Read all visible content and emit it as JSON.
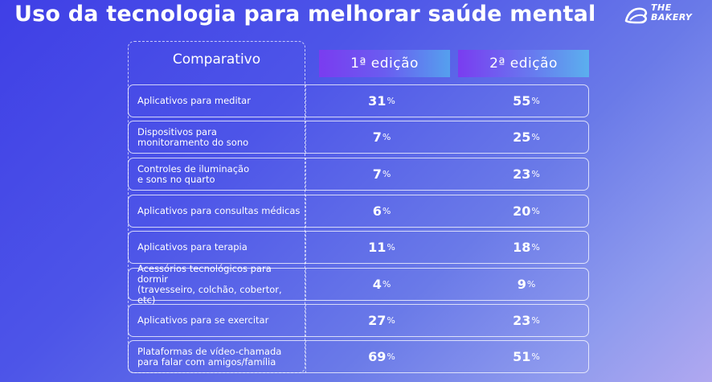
{
  "title": "Uso da tecnologia para melhorar saúde mental",
  "logo": {
    "line1": "THE",
    "line2": "BAKERY"
  },
  "table": {
    "header": {
      "comparativo": "Comparativo",
      "ed1": "1ª edição",
      "ed2": "2ª edição"
    },
    "rows": [
      {
        "label": "Aplicativos para meditar",
        "ed1": "31",
        "ed2": "55",
        "unit": "%"
      },
      {
        "label": "Dispositivos para\nmonitoramento do sono",
        "ed1": "7",
        "ed2": "25",
        "unit": "%"
      },
      {
        "label": "Controles de iluminação\ne sons no quarto",
        "ed1": "7",
        "ed2": "23",
        "unit": "%"
      },
      {
        "label": "Aplicativos para consultas médicas",
        "ed1": "6",
        "ed2": "20",
        "unit": "%"
      },
      {
        "label": "Aplicativos para terapia",
        "ed1": "11",
        "ed2": "18",
        "unit": "%"
      },
      {
        "label": "Acessórios tecnológicos para dormir\n(travesseiro, colchão, cobertor, etc)",
        "ed1": "4",
        "ed2": "9",
        "unit": "%"
      },
      {
        "label": "Aplicativos para se exercitar",
        "ed1": "27",
        "ed2": "23",
        "unit": "%"
      },
      {
        "label": "Plataformas de vídeo-chamada\npara falar com amigos/família",
        "ed1": "69",
        "ed2": "51",
        "unit": "%"
      }
    ]
  }
}
